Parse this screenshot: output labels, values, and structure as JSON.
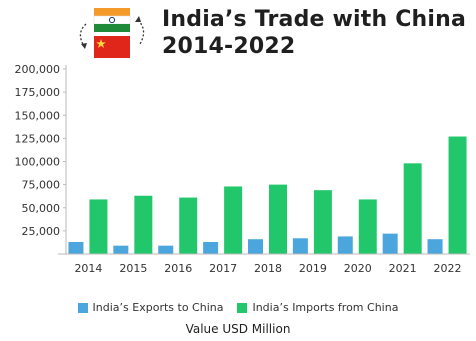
{
  "header": {
    "title_line1": "India’s Trade with China",
    "title_line2": "2014-2022"
  },
  "footer": {
    "caption": "Value USD Million"
  },
  "colors": {
    "exports": "#4aa6dc",
    "imports": "#23c76b",
    "india_saffron": "#f39a2b",
    "india_green": "#1f8a3a",
    "china_red": "#e0261b",
    "china_star": "#ffd83b"
  },
  "chart_data": {
    "type": "bar",
    "title": "India’s Trade with China 2014-2022",
    "xlabel": "Value USD Million",
    "ylabel": "",
    "ylim": [
      0,
      200000
    ],
    "yticks": [
      25000,
      50000,
      75000,
      100000,
      125000,
      150000,
      175000,
      200000
    ],
    "ytick_labels": [
      "25,000",
      "50,000",
      "75,000",
      "100,000",
      "125,000",
      "150,000",
      "175,000",
      "200,000"
    ],
    "grid": false,
    "legend_position": "bottom",
    "categories": [
      "2014",
      "2015",
      "2016",
      "2017",
      "2018",
      "2019",
      "2020",
      "2021",
      "2022"
    ],
    "series": [
      {
        "name": "India’s Exports to China",
        "values": [
          13000,
          9000,
          9000,
          13000,
          16000,
          17000,
          19000,
          22000,
          16000
        ]
      },
      {
        "name": "India’s Imports from China",
        "values": [
          59000,
          63000,
          61000,
          73000,
          75000,
          69000,
          59000,
          98000,
          127000
        ]
      }
    ]
  }
}
